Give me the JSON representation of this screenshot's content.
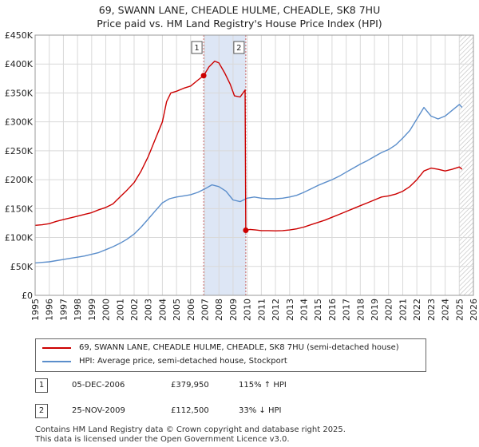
{
  "header": {
    "title_line1": "69, SWANN LANE, CHEADLE HULME, CHEADLE, SK8 7HU",
    "title_line2": "Price paid vs. HM Land Registry's House Price Index (HPI)"
  },
  "colors": {
    "price_line": "#cc0000",
    "hpi_line": "#5b8ecb",
    "vline": "#cc6666",
    "highlight": "#dde6f5",
    "grid": "#d9d9d9"
  },
  "chart_data": {
    "type": "line",
    "title": "69, SWANN LANE, CHEADLE HULME, CHEADLE, SK8 7HU",
    "subtitle": "Price paid vs. HM Land Registry's House Price Index (HPI)",
    "xlabel": "",
    "ylabel": "",
    "xlim": [
      1995,
      2026
    ],
    "ylim": [
      0,
      450000
    ],
    "grid": true,
    "y_ticks": [
      {
        "value": 0,
        "label": "£0"
      },
      {
        "value": 50000,
        "label": "£50K"
      },
      {
        "value": 100000,
        "label": "£100K"
      },
      {
        "value": 150000,
        "label": "£150K"
      },
      {
        "value": 200000,
        "label": "£200K"
      },
      {
        "value": 250000,
        "label": "£250K"
      },
      {
        "value": 300000,
        "label": "£300K"
      },
      {
        "value": 350000,
        "label": "£350K"
      },
      {
        "value": 400000,
        "label": "£400K"
      },
      {
        "value": 450000,
        "label": "£450K"
      }
    ],
    "x_ticks": [
      "1995",
      "1996",
      "1997",
      "1998",
      "1999",
      "2000",
      "2001",
      "2002",
      "2003",
      "2004",
      "2005",
      "2006",
      "2007",
      "2008",
      "2009",
      "2010",
      "2011",
      "2012",
      "2013",
      "2014",
      "2015",
      "2016",
      "2017",
      "2018",
      "2019",
      "2020",
      "2021",
      "2022",
      "2023",
      "2024",
      "2025",
      "2026"
    ],
    "highlight_span": [
      2006.92,
      2009.9
    ],
    "hatch_from": 2025.0,
    "series": [
      {
        "name": "69, SWANN LANE, CHEADLE HULME, CHEADLE, SK8 7HU (semi-detached house)",
        "color": "#cc0000",
        "x": [
          1995.0,
          1995.5,
          1996.0,
          1996.5,
          1997.0,
          1997.5,
          1998.0,
          1998.5,
          1999.0,
          1999.5,
          2000.0,
          2000.5,
          2001.0,
          2001.5,
          2002.0,
          2002.5,
          2003.0,
          2003.5,
          2004.0,
          2004.3,
          2004.6,
          2005.0,
          2005.5,
          2006.0,
          2006.5,
          2006.92,
          2007.3,
          2007.7,
          2008.0,
          2008.4,
          2008.8,
          2009.1,
          2009.5,
          2009.85,
          2009.9,
          2010.2,
          2010.6,
          2011.0,
          2011.5,
          2012.0,
          2012.5,
          2013.0,
          2013.5,
          2014.0,
          2014.5,
          2015.0,
          2015.5,
          2016.0,
          2016.5,
          2017.0,
          2017.5,
          2018.0,
          2018.5,
          2019.0,
          2019.5,
          2020.0,
          2020.5,
          2021.0,
          2021.5,
          2022.0,
          2022.5,
          2023.0,
          2023.5,
          2024.0,
          2024.5,
          2025.0,
          2025.2
        ],
        "values": [
          121000,
          122000,
          124000,
          128000,
          131000,
          134000,
          137000,
          140000,
          143000,
          148000,
          152000,
          158000,
          170000,
          182000,
          195000,
          215000,
          240000,
          270000,
          300000,
          335000,
          350000,
          353000,
          358000,
          362000,
          372000,
          379950,
          395000,
          405000,
          402000,
          385000,
          365000,
          345000,
          343000,
          355000,
          112500,
          114000,
          113000,
          112000,
          112000,
          111500,
          112000,
          113000,
          115000,
          118000,
          122000,
          126000,
          130000,
          135000,
          140000,
          145000,
          150000,
          155000,
          160000,
          165000,
          170000,
          172000,
          175000,
          180000,
          188000,
          200000,
          215000,
          220000,
          218000,
          215000,
          218000,
          222000,
          218000
        ]
      },
      {
        "name": "HPI: Average price, semi-detached house, Stockport",
        "color": "#5b8ecb",
        "x": [
          1995.0,
          1995.5,
          1996.0,
          1996.5,
          1997.0,
          1997.5,
          1998.0,
          1998.5,
          1999.0,
          1999.5,
          2000.0,
          2000.5,
          2001.0,
          2001.5,
          2002.0,
          2002.5,
          2003.0,
          2003.5,
          2004.0,
          2004.5,
          2005.0,
          2005.5,
          2006.0,
          2006.5,
          2007.0,
          2007.5,
          2008.0,
          2008.5,
          2009.0,
          2009.5,
          2010.0,
          2010.5,
          2011.0,
          2011.5,
          2012.0,
          2012.5,
          2013.0,
          2013.5,
          2014.0,
          2014.5,
          2015.0,
          2015.5,
          2016.0,
          2016.5,
          2017.0,
          2017.5,
          2018.0,
          2018.5,
          2019.0,
          2019.5,
          2020.0,
          2020.5,
          2021.0,
          2021.5,
          2022.0,
          2022.5,
          2023.0,
          2023.5,
          2024.0,
          2024.5,
          2025.0,
          2025.2
        ],
        "values": [
          56000,
          57000,
          58000,
          60000,
          62000,
          64000,
          66000,
          68000,
          71000,
          74000,
          79000,
          84000,
          90000,
          97000,
          106000,
          118000,
          132000,
          146000,
          160000,
          167000,
          170000,
          172000,
          174000,
          178000,
          184000,
          191000,
          188000,
          180000,
          165000,
          162000,
          168000,
          170000,
          168000,
          167000,
          167000,
          168000,
          170000,
          173000,
          178000,
          184000,
          190000,
          195000,
          200000,
          206000,
          213000,
          220000,
          227000,
          233000,
          240000,
          247000,
          252000,
          260000,
          272000,
          285000,
          305000,
          325000,
          310000,
          305000,
          310000,
          320000,
          330000,
          325000
        ]
      }
    ],
    "markers": [
      {
        "label": "1",
        "x": 2006.92,
        "value": 379950
      },
      {
        "label": "2",
        "x": 2009.9,
        "value": 112500
      }
    ]
  },
  "legend": {
    "items": [
      {
        "label": "69, SWANN LANE, CHEADLE HULME, CHEADLE, SK8 7HU (semi-detached house)",
        "color": "#cc0000"
      },
      {
        "label": "HPI: Average price, semi-detached house, Stockport",
        "color": "#5b8ecb"
      }
    ]
  },
  "transactions": [
    {
      "id": "1",
      "date": "05-DEC-2006",
      "price": "£379,950",
      "hpi": "115% ↑ HPI"
    },
    {
      "id": "2",
      "date": "25-NOV-2009",
      "price": "£112,500",
      "hpi": "33% ↓ HPI"
    }
  ],
  "footer": {
    "line1": "Contains HM Land Registry data © Crown copyright and database right 2025.",
    "line2": "This data is licensed under the Open Government Licence v3.0."
  }
}
